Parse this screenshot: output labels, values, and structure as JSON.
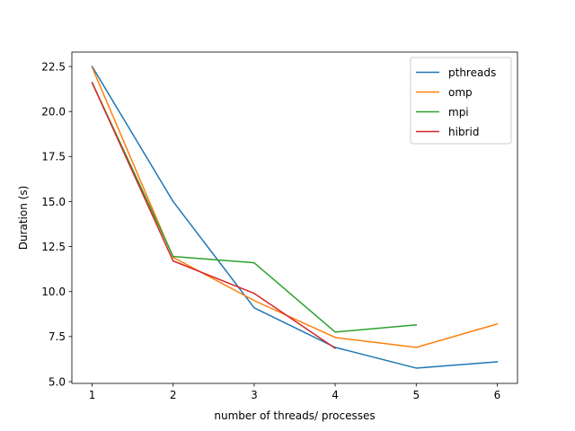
{
  "chart_data": {
    "type": "line",
    "title": "",
    "xlabel": "number of threads/ processes",
    "ylabel": "Duration (s)",
    "xlim": [
      0.75,
      6.25
    ],
    "ylim": [
      4.9,
      23.3
    ],
    "xticks": [
      1,
      2,
      3,
      4,
      5,
      6
    ],
    "xtick_labels": [
      "1",
      "2",
      "3",
      "4",
      "5",
      "6"
    ],
    "yticks": [
      5.0,
      7.5,
      10.0,
      12.5,
      15.0,
      17.5,
      20.0,
      22.5
    ],
    "ytick_labels": [
      "5.0",
      "7.5",
      "10.0",
      "12.5",
      "15.0",
      "17.5",
      "20.0",
      "22.5"
    ],
    "grid": false,
    "legend_position": "top-right",
    "series": [
      {
        "name": "pthreads",
        "color": "#1f77b4",
        "x": [
          1,
          2,
          3,
          4,
          5,
          6
        ],
        "values": [
          22.5,
          15.0,
          9.1,
          6.9,
          5.75,
          6.1
        ]
      },
      {
        "name": "omp",
        "color": "#ff7f0e",
        "x": [
          1,
          2,
          3,
          4,
          5,
          6
        ],
        "values": [
          22.45,
          11.9,
          9.5,
          7.45,
          6.9,
          8.2
        ]
      },
      {
        "name": "mpi",
        "color": "#2ca02c",
        "x": [
          1,
          2,
          3,
          4,
          5
        ],
        "values": [
          21.6,
          11.95,
          11.6,
          7.75,
          8.15
        ]
      },
      {
        "name": "hibrid",
        "color": "#d62728",
        "x": [
          1,
          2,
          3,
          4
        ],
        "values": [
          21.6,
          11.7,
          9.9,
          6.85
        ]
      }
    ]
  }
}
